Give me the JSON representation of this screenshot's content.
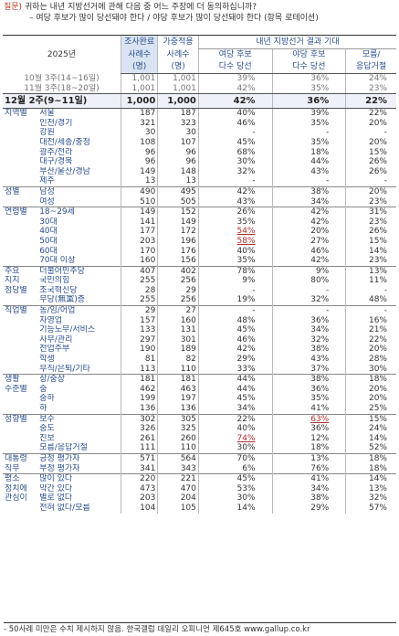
{
  "question": {
    "label": "질문)",
    "line1": "귀하는 내년 지방선거에 관해 다음 중 어느 주장에 더 동의하십니까?",
    "line2": "– 여당 후보가 많이 당선돼야 한다 / 야당 후보가 많이 당선돼야 한다 (항목 로테이션)"
  },
  "header": {
    "year": "2025년",
    "col_n1_a": "조사완료",
    "col_n1_b": "사례수",
    "col_n1_c": "(명)",
    "col_n2_a": "가중적용",
    "col_n2_b": "사례수",
    "col_n2_c": "(명)",
    "group": "내년 지방선거 결과 기대",
    "p1_a": "여당 후보",
    "p1_b": "다수 당선",
    "p2_a": "야당 후보",
    "p2_b": "다수 당선",
    "p3_a": "모름/",
    "p3_b": "응답거절"
  },
  "prev_rows": [
    {
      "label": "10월 3주(14~16일)",
      "n1": "1,001",
      "n2": "1,001",
      "p1": "39%",
      "p2": "36%",
      "p3": "24%"
    },
    {
      "label": "11월 3주(18~20일)",
      "n1": "1,001",
      "n2": "1,001",
      "p1": "42%",
      "p2": "35%",
      "p3": "23%"
    }
  ],
  "current": {
    "label": "12월 2주(9~11일)",
    "n1": "1,000",
    "n2": "1,000",
    "p1": "42%",
    "p2": "36%",
    "p3": "22%"
  },
  "rows": [
    {
      "cat": "지역별",
      "sub": "서울",
      "n1": "187",
      "n2": "187",
      "p1": "40%",
      "p2": "39%",
      "p3": "22%",
      "start": true
    },
    {
      "cat": "",
      "sub": "인천/경기",
      "n1": "321",
      "n2": "323",
      "p1": "46%",
      "p2": "35%",
      "p3": "20%"
    },
    {
      "cat": "",
      "sub": "강원",
      "n1": "30",
      "n2": "30",
      "p1": "-",
      "p2": "-",
      "p3": "-"
    },
    {
      "cat": "",
      "sub": "대전/세종/충청",
      "n1": "108",
      "n2": "107",
      "p1": "45%",
      "p2": "35%",
      "p3": "20%"
    },
    {
      "cat": "",
      "sub": "광주/전라",
      "n1": "96",
      "n2": "96",
      "p1": "68%",
      "p2": "18%",
      "p3": "15%"
    },
    {
      "cat": "",
      "sub": "대구/경북",
      "n1": "96",
      "n2": "96",
      "p1": "30%",
      "p2": "44%",
      "p3": "26%"
    },
    {
      "cat": "",
      "sub": "부산/울산/경남",
      "n1": "149",
      "n2": "148",
      "p1": "32%",
      "p2": "43%",
      "p3": "26%"
    },
    {
      "cat": "",
      "sub": "제주",
      "n1": "13",
      "n2": "13",
      "p1": "-",
      "p2": "-",
      "p3": "-"
    },
    {
      "cat": "성별",
      "sub": "남성",
      "n1": "490",
      "n2": "495",
      "p1": "42%",
      "p2": "38%",
      "p3": "20%",
      "start": true
    },
    {
      "cat": "",
      "sub": "여성",
      "n1": "510",
      "n2": "505",
      "p1": "43%",
      "p2": "34%",
      "p3": "23%"
    },
    {
      "cat": "연령별",
      "sub": "18~29세",
      "n1": "149",
      "n2": "152",
      "p1": "26%",
      "p2": "42%",
      "p3": "31%",
      "start": true
    },
    {
      "cat": "",
      "sub": "30대",
      "n1": "141",
      "n2": "149",
      "p1": "35%",
      "p2": "42%",
      "p3": "23%"
    },
    {
      "cat": "",
      "sub": "40대",
      "n1": "177",
      "n2": "172",
      "p1": "54%",
      "p2": "20%",
      "p3": "26%",
      "red1": true
    },
    {
      "cat": "",
      "sub": "50대",
      "n1": "203",
      "n2": "196",
      "p1": "58%",
      "p2": "27%",
      "p3": "15%",
      "red1": true
    },
    {
      "cat": "",
      "sub": "60대",
      "n1": "170",
      "n2": "176",
      "p1": "40%",
      "p2": "46%",
      "p3": "14%"
    },
    {
      "cat": "",
      "sub": "70대 이상",
      "n1": "160",
      "n2": "156",
      "p1": "35%",
      "p2": "42%",
      "p3": "23%"
    },
    {
      "cat": "주요",
      "sub": "더불어민주당",
      "n1": "407",
      "n2": "402",
      "p1": "78%",
      "p2": "9%",
      "p3": "13%",
      "start": true
    },
    {
      "cat": "지지",
      "sub": "국민의힘",
      "n1": "255",
      "n2": "256",
      "p1": "9%",
      "p2": "80%",
      "p3": "11%"
    },
    {
      "cat": "정당별",
      "sub": "조국혁신당",
      "n1": "28",
      "n2": "29",
      "p1": "-",
      "p2": "-",
      "p3": "-"
    },
    {
      "cat": "",
      "sub": "무당(無黨)층",
      "n1": "255",
      "n2": "256",
      "p1": "19%",
      "p2": "32%",
      "p3": "48%"
    },
    {
      "cat": "직업별",
      "sub": "농/임/어업",
      "n1": "29",
      "n2": "27",
      "p1": "-",
      "p2": "-",
      "p3": "-",
      "start": true
    },
    {
      "cat": "",
      "sub": "자영업",
      "n1": "157",
      "n2": "160",
      "p1": "48%",
      "p2": "36%",
      "p3": "16%"
    },
    {
      "cat": "",
      "sub": "기능노무/서비스",
      "n1": "133",
      "n2": "131",
      "p1": "45%",
      "p2": "34%",
      "p3": "21%"
    },
    {
      "cat": "",
      "sub": "사무/관리",
      "n1": "297",
      "n2": "301",
      "p1": "46%",
      "p2": "32%",
      "p3": "22%"
    },
    {
      "cat": "",
      "sub": "전업주부",
      "n1": "190",
      "n2": "189",
      "p1": "42%",
      "p2": "38%",
      "p3": "20%"
    },
    {
      "cat": "",
      "sub": "학생",
      "n1": "81",
      "n2": "82",
      "p1": "29%",
      "p2": "43%",
      "p3": "28%"
    },
    {
      "cat": "",
      "sub": "무직/은퇴/기타",
      "n1": "113",
      "n2": "110",
      "p1": "33%",
      "p2": "37%",
      "p3": "30%"
    },
    {
      "cat": "생활",
      "sub": "상/중상",
      "n1": "181",
      "n2": "181",
      "p1": "44%",
      "p2": "38%",
      "p3": "18%",
      "start": true
    },
    {
      "cat": "수준별",
      "sub": "중",
      "n1": "462",
      "n2": "463",
      "p1": "44%",
      "p2": "36%",
      "p3": "20%"
    },
    {
      "cat": "",
      "sub": "중하",
      "n1": "199",
      "n2": "197",
      "p1": "45%",
      "p2": "35%",
      "p3": "20%"
    },
    {
      "cat": "",
      "sub": "하",
      "n1": "136",
      "n2": "136",
      "p1": "34%",
      "p2": "41%",
      "p3": "25%"
    },
    {
      "cat": "성향별",
      "sub": "보수",
      "n1": "302",
      "n2": "305",
      "p1": "22%",
      "p2": "63%",
      "p3": "15%",
      "start": true,
      "red2": true
    },
    {
      "cat": "",
      "sub": "중도",
      "n1": "326",
      "n2": "325",
      "p1": "40%",
      "p2": "36%",
      "p3": "24%"
    },
    {
      "cat": "",
      "sub": "진보",
      "n1": "261",
      "n2": "260",
      "p1": "74%",
      "p2": "12%",
      "p3": "14%",
      "red1": true
    },
    {
      "cat": "",
      "sub": "모름/응답거절",
      "n1": "111",
      "n2": "110",
      "p1": "30%",
      "p2": "18%",
      "p3": "52%"
    },
    {
      "cat": "대통령",
      "sub": "긍정 평가자",
      "n1": "571",
      "n2": "564",
      "p1": "70%",
      "p2": "13%",
      "p3": "18%",
      "start": true
    },
    {
      "cat": "직무",
      "sub": "부정 평가자",
      "n1": "341",
      "n2": "343",
      "p1": "6%",
      "p2": "76%",
      "p3": "18%"
    },
    {
      "cat": "평소",
      "sub": "많이 있다",
      "n1": "220",
      "n2": "221",
      "p1": "45%",
      "p2": "41%",
      "p3": "14%",
      "start": true
    },
    {
      "cat": "정치에",
      "sub": "약간 있다",
      "n1": "473",
      "n2": "470",
      "p1": "53%",
      "p2": "34%",
      "p3": "13%"
    },
    {
      "cat": "관심이",
      "sub": "별로 없다",
      "n1": "203",
      "n2": "204",
      "p1": "30%",
      "p2": "38%",
      "p3": "32%"
    },
    {
      "cat": "",
      "sub": "전혀 없다/모름",
      "n1": "104",
      "n2": "105",
      "p1": "14%",
      "p2": "29%",
      "p3": "57%"
    }
  ],
  "footnote": "- 50사례 미만은 수치 제시하지 않음. 한국갤럽 데일리 오피니언 제645호 www.gallup.co.kr"
}
